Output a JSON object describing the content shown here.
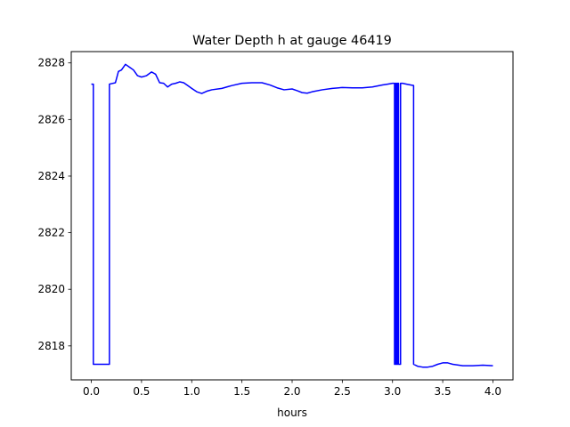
{
  "chart_data": {
    "type": "line",
    "title": "Water Depth h at gauge 46419",
    "xlabel": "hours",
    "ylabel": "",
    "xlim": [
      -0.2,
      4.2
    ],
    "ylim": [
      2816.8,
      2828.4
    ],
    "xticks": [
      0.0,
      0.5,
      1.0,
      1.5,
      2.0,
      2.5,
      3.0,
      3.5,
      4.0
    ],
    "xtick_labels": [
      "0.0",
      "0.5",
      "1.0",
      "1.5",
      "2.0",
      "2.5",
      "3.0",
      "3.5",
      "4.0"
    ],
    "yticks": [
      2818,
      2820,
      2822,
      2824,
      2826,
      2828
    ],
    "ytick_labels": [
      "2818",
      "2820",
      "2822",
      "2824",
      "2826",
      "2828"
    ],
    "grid": false,
    "series": [
      {
        "color": "#0000ff",
        "x": [
          0.0,
          0.02,
          0.02,
          0.18,
          0.18,
          0.24,
          0.27,
          0.3,
          0.34,
          0.38,
          0.42,
          0.46,
          0.5,
          0.55,
          0.6,
          0.64,
          0.68,
          0.72,
          0.76,
          0.8,
          0.84,
          0.88,
          0.92,
          0.96,
          1.0,
          1.05,
          1.1,
          1.15,
          1.2,
          1.3,
          1.4,
          1.5,
          1.6,
          1.7,
          1.78,
          1.85,
          1.92,
          2.0,
          2.05,
          2.1,
          2.15,
          2.2,
          2.3,
          2.4,
          2.5,
          2.6,
          2.7,
          2.8,
          2.9,
          2.95,
          3.0,
          3.02,
          3.02,
          3.03,
          3.03,
          3.04,
          3.04,
          3.05,
          3.05,
          3.06,
          3.06,
          3.08,
          3.08,
          3.1,
          3.1,
          3.14,
          3.18,
          3.21,
          3.21,
          3.25,
          3.3,
          3.35,
          3.4,
          3.45,
          3.5,
          3.55,
          3.6,
          3.7,
          3.8,
          3.9,
          4.0
        ],
        "y": [
          2827.25,
          2827.25,
          2817.35,
          2817.35,
          2827.25,
          2827.3,
          2827.7,
          2827.75,
          2827.95,
          2827.85,
          2827.75,
          2827.55,
          2827.5,
          2827.55,
          2827.68,
          2827.6,
          2827.3,
          2827.28,
          2827.15,
          2827.25,
          2827.28,
          2827.33,
          2827.3,
          2827.2,
          2827.1,
          2826.98,
          2826.92,
          2827.0,
          2827.05,
          2827.1,
          2827.2,
          2827.28,
          2827.3,
          2827.3,
          2827.22,
          2827.12,
          2827.05,
          2827.08,
          2827.02,
          2826.95,
          2826.93,
          2826.98,
          2827.05,
          2827.1,
          2827.13,
          2827.12,
          2827.12,
          2827.15,
          2827.22,
          2827.25,
          2827.28,
          2827.28,
          2817.35,
          2817.35,
          2827.28,
          2827.28,
          2817.35,
          2817.35,
          2827.28,
          2827.28,
          2817.35,
          2817.35,
          2827.28,
          2827.28,
          2827.28,
          2827.25,
          2827.22,
          2827.2,
          2817.35,
          2817.28,
          2817.25,
          2817.25,
          2817.28,
          2817.35,
          2817.4,
          2817.4,
          2817.35,
          2817.3,
          2817.3,
          2817.32,
          2817.3
        ]
      }
    ]
  }
}
